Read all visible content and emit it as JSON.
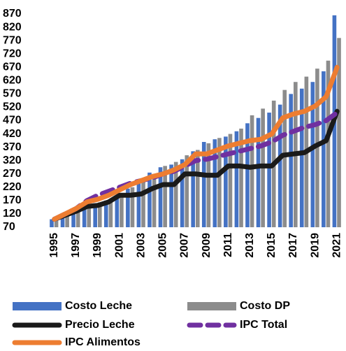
{
  "chart_data": {
    "type": "combo",
    "x": [
      1995,
      1996,
      1997,
      1998,
      1999,
      2000,
      2001,
      2002,
      2003,
      2004,
      2005,
      2006,
      2007,
      2008,
      2009,
      2010,
      2011,
      2012,
      2013,
      2014,
      2015,
      2016,
      2017,
      2018,
      2019,
      2020,
      2021
    ],
    "xlim": [
      1994.5,
      2021.5
    ],
    "xticks": [
      1995,
      1997,
      1999,
      2001,
      2003,
      2005,
      2007,
      2009,
      2011,
      2013,
      2015,
      2017,
      2019,
      2021
    ],
    "ylim": [
      70,
      870
    ],
    "yticks": [
      70,
      120,
      170,
      220,
      270,
      320,
      370,
      420,
      470,
      520,
      570,
      620,
      670,
      720,
      770,
      820,
      870
    ],
    "grid": false,
    "legend": "bottom",
    "series": [
      {
        "name": "Costo Leche",
        "type": "bar",
        "color": "#4472c4",
        "values": [
          100,
          115,
          130,
          150,
          160,
          170,
          185,
          215,
          245,
          275,
          295,
          305,
          325,
          355,
          390,
          400,
          410,
          430,
          460,
          480,
          500,
          530,
          570,
          590,
          615,
          655,
          865
        ]
      },
      {
        "name": "Costo DP",
        "type": "bar",
        "color": "#8c8c8c",
        "values": [
          100,
          118,
          132,
          152,
          163,
          175,
          190,
          220,
          250,
          270,
          300,
          315,
          340,
          360,
          385,
          405,
          420,
          440,
          490,
          515,
          545,
          585,
          615,
          635,
          665,
          695,
          780
        ]
      },
      {
        "name": "Precio Leche",
        "type": "line",
        "color": "#1a1a1a",
        "dashed": false,
        "values": [
          100,
          115,
          130,
          148,
          152,
          165,
          190,
          190,
          195,
          215,
          230,
          230,
          270,
          270,
          265,
          265,
          300,
          300,
          295,
          300,
          300,
          340,
          345,
          350,
          375,
          395,
          505
        ]
      },
      {
        "name": "IPC Total",
        "type": "line",
        "color": "#7030a0",
        "dashed": true,
        "values": [
          100,
          120,
          140,
          170,
          190,
          205,
          220,
          235,
          245,
          255,
          270,
          280,
          300,
          320,
          325,
          335,
          345,
          355,
          365,
          375,
          390,
          415,
          430,
          445,
          455,
          470,
          500
        ]
      },
      {
        "name": "IPC Alimentos",
        "type": "line",
        "color": "#ed7d31",
        "dashed": false,
        "values": [
          100,
          120,
          140,
          165,
          175,
          190,
          210,
          230,
          245,
          260,
          270,
          285,
          305,
          345,
          345,
          360,
          375,
          385,
          395,
          400,
          420,
          480,
          495,
          505,
          525,
          560,
          670
        ]
      }
    ]
  }
}
